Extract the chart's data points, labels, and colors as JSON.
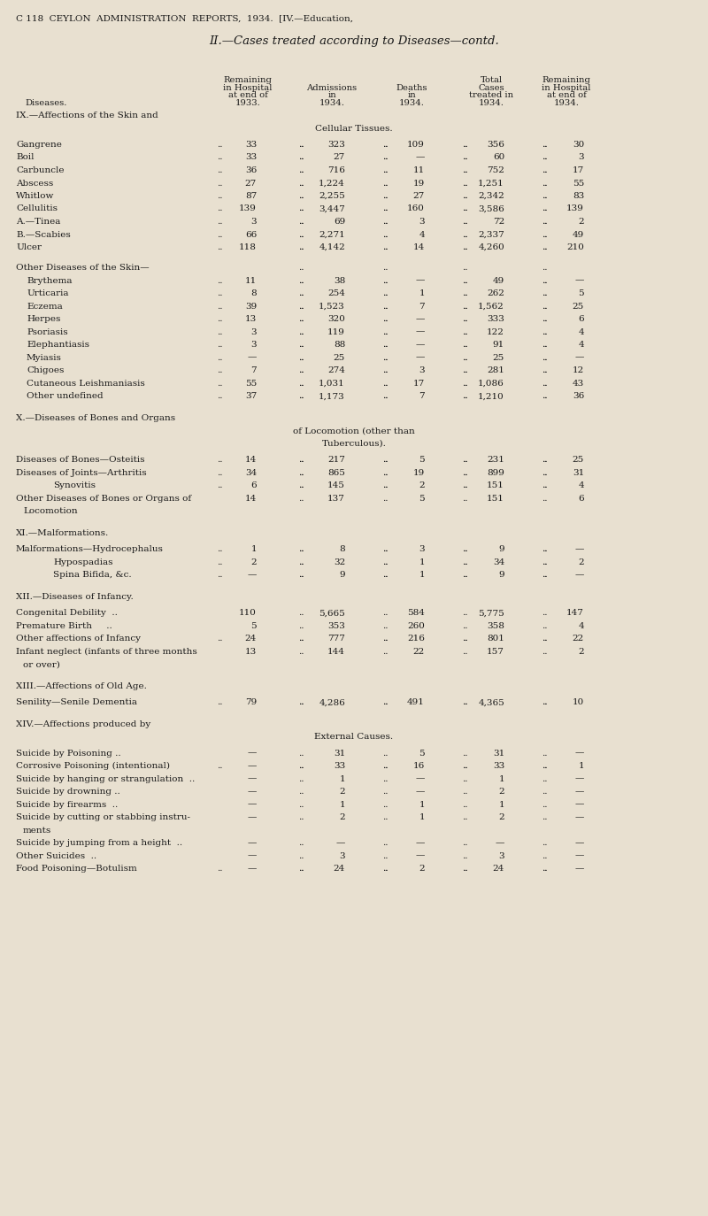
{
  "page_header": "C 118  CEYLON  ADMINISTRATION  REPORTS,  1934.  [IV.—Education,",
  "title": "II.—Cases treated according to Diseases—contd.",
  "bg_color": "#e8e0d0",
  "text_color": "#1a1a1a",
  "fig_width": 8.0,
  "fig_height": 13.74,
  "dpi": 100,
  "sections": [
    {
      "heading_lines": [
        "IX.—Affections of the Skin and",
        "Cellular Tissues."
      ],
      "heading_center": true,
      "rows": [
        {
          "label": "Gangrene",
          "dots": true,
          "indent": 0,
          "multiline": false,
          "v1": "33",
          "v2": "323",
          "v3": "109",
          "v4": "356",
          "v5": "30"
        },
        {
          "label": "Boil",
          "dots": true,
          "indent": 0,
          "multiline": false,
          "v1": "33",
          "v2": "27",
          "v3": "—",
          "v4": "60",
          "v5": "3"
        },
        {
          "label": "Carbuncle",
          "dots": true,
          "indent": 0,
          "multiline": false,
          "v1": "36",
          "v2": "716",
          "v3": "11",
          "v4": "752",
          "v5": "17"
        },
        {
          "label": "Abscess",
          "dots": true,
          "indent": 0,
          "multiline": false,
          "v1": "27",
          "v2": "1,224",
          "v3": "19",
          "v4": "1,251",
          "v5": "55"
        },
        {
          "label": "Whitlow",
          "dots": true,
          "indent": 0,
          "multiline": false,
          "v1": "87",
          "v2": "2,255",
          "v3": "27",
          "v4": "2,342",
          "v5": "83"
        },
        {
          "label": "Cellulitis",
          "dots": true,
          "indent": 0,
          "multiline": false,
          "v1": "139",
          "v2": "3,447",
          "v3": "160",
          "v4": "3,586",
          "v5": "139"
        },
        {
          "label": "A.—Tinea",
          "dots": true,
          "indent": 0,
          "multiline": false,
          "v1": "3",
          "v2": "69",
          "v3": "3",
          "v4": "72",
          "v5": "2"
        },
        {
          "label": "B.—Scabies",
          "dots": true,
          "indent": 0,
          "multiline": false,
          "v1": "66",
          "v2": "2,271",
          "v3": "4",
          "v4": "2,337",
          "v5": "49"
        },
        {
          "label": "Ulcer",
          "dots": true,
          "indent": 0,
          "multiline": false,
          "v1": "118",
          "v2": "4,142",
          "v3": "14",
          "v4": "4,260",
          "v5": "210"
        },
        {
          "label": "",
          "dots": false,
          "indent": 0,
          "multiline": false,
          "spacer": true,
          "v1": "",
          "v2": "",
          "v3": "",
          "v4": "",
          "v5": ""
        },
        {
          "label": "Other Diseases of the Skin—",
          "dots": false,
          "indent": 0,
          "multiline": false,
          "v1": "",
          "v2": "",
          "v3": "",
          "v4": "",
          "v5": ""
        },
        {
          "label": "Brythema",
          "dots": true,
          "indent": 1,
          "multiline": false,
          "v1": "11",
          "v2": "38",
          "v3": "—",
          "v4": "49",
          "v5": "—"
        },
        {
          "label": "Urticaria",
          "dots": true,
          "indent": 1,
          "multiline": false,
          "v1": "8",
          "v2": "254",
          "v3": "1",
          "v4": "262",
          "v5": "5"
        },
        {
          "label": "Eczema",
          "dots": true,
          "indent": 1,
          "multiline": false,
          "v1": "39",
          "v2": "1,523",
          "v3": "7",
          "v4": "1,562",
          "v5": "25"
        },
        {
          "label": "Herpes",
          "dots": true,
          "indent": 1,
          "multiline": false,
          "v1": "13",
          "v2": "320",
          "v3": "—",
          "v4": "333",
          "v5": "6"
        },
        {
          "label": "Psoriasis",
          "dots": true,
          "indent": 1,
          "multiline": false,
          "v1": "3",
          "v2": "119",
          "v3": "—",
          "v4": "122",
          "v5": "4"
        },
        {
          "label": "Elephantiasis",
          "dots": true,
          "indent": 1,
          "multiline": false,
          "v1": "3",
          "v2": "88",
          "v3": "—",
          "v4": "91",
          "v5": "4"
        },
        {
          "label": "Myiasis",
          "dots": true,
          "indent": 1,
          "multiline": false,
          "v1": "—",
          "v2": "25",
          "v3": "—",
          "v4": "25",
          "v5": "—"
        },
        {
          "label": "Chigoes",
          "dots": true,
          "indent": 1,
          "multiline": false,
          "v1": "7",
          "v2": "274",
          "v3": "3",
          "v4": "281",
          "v5": "12"
        },
        {
          "label": "Cutaneous Leishmaniasis",
          "dots": true,
          "indent": 1,
          "multiline": false,
          "v1": "55",
          "v2": "1,031",
          "v3": "17",
          "v4": "1,086",
          "v5": "43"
        },
        {
          "label": "Other undefined",
          "dots": true,
          "indent": 1,
          "multiline": false,
          "v1": "37",
          "v2": "1,173",
          "v3": "7",
          "v4": "1,210",
          "v5": "36"
        }
      ]
    },
    {
      "heading_lines": [
        "X.—Diseases of Bones and Organs",
        "of Locomotion (other than",
        "Tuberculous)."
      ],
      "heading_center": true,
      "rows": [
        {
          "label": "Diseases of Bones—Osteitis",
          "dots": true,
          "indent": 0,
          "multiline": false,
          "v1": "14",
          "v2": "217",
          "v3": "5",
          "v4": "231",
          "v5": "25"
        },
        {
          "label": "Diseases of Joints—Arthritis",
          "dots": true,
          "indent": 0,
          "multiline": false,
          "v1": "34",
          "v2": "865",
          "v3": "19",
          "v4": "899",
          "v5": "31"
        },
        {
          "label": "Synovitis",
          "dots": true,
          "indent": 2,
          "multiline": false,
          "v1": "6",
          "v2": "145",
          "v3": "2",
          "v4": "151",
          "v5": "4"
        },
        {
          "label": "Other Diseases of Bones or Organs of",
          "dots": false,
          "indent": 0,
          "multiline": true,
          "label2": "Locomotion",
          "v1": "14",
          "v2": "137",
          "v3": "5",
          "v4": "151",
          "v5": "6"
        }
      ]
    },
    {
      "heading_lines": [
        "XI.—Malformations."
      ],
      "heading_center": true,
      "rows": [
        {
          "label": "Malformations—Hydrocephalus",
          "dots": true,
          "indent": 0,
          "multiline": false,
          "v1": "1",
          "v2": "8",
          "v3": "3",
          "v4": "9",
          "v5": "—"
        },
        {
          "label": "Hypospadias",
          "dots": true,
          "indent": 2,
          "multiline": false,
          "v1": "2",
          "v2": "32",
          "v3": "1",
          "v4": "34",
          "v5": "2"
        },
        {
          "label": "Spina Bifida, &c.",
          "dots": true,
          "indent": 2,
          "multiline": false,
          "v1": "—",
          "v2": "9",
          "v3": "1",
          "v4": "9",
          "v5": "—"
        }
      ]
    },
    {
      "heading_lines": [
        "XII.—Diseases of Infancy."
      ],
      "heading_center": true,
      "rows": [
        {
          "label": "Congenital Debility  ..",
          "dots": false,
          "indent": 0,
          "multiline": false,
          "v1": "110",
          "v2": "5,665",
          "v3": "584",
          "v4": "5,775",
          "v5": "147"
        },
        {
          "label": "Premature Birth     ..",
          "dots": false,
          "indent": 0,
          "multiline": false,
          "v1": "5",
          "v2": "353",
          "v3": "260",
          "v4": "358",
          "v5": "4"
        },
        {
          "label": "Other affections of Infancy",
          "dots": true,
          "indent": 0,
          "multiline": false,
          "v1": "24",
          "v2": "777",
          "v3": "216",
          "v4": "801",
          "v5": "22"
        },
        {
          "label": "Infant neglect (infants of three months",
          "dots": false,
          "indent": 0,
          "multiline": true,
          "label2": "or over)",
          "v1": "13",
          "v2": "144",
          "v3": "22",
          "v4": "157",
          "v5": "2"
        }
      ]
    },
    {
      "heading_lines": [
        "XIII.—Affections of Old Age."
      ],
      "heading_center": true,
      "rows": [
        {
          "label": "Senility—Senile Dementia",
          "dots": true,
          "indent": 0,
          "multiline": false,
          "v1": "79",
          "v2": "4,286",
          "v3": "491",
          "v4": "4,365",
          "v5": "10"
        }
      ]
    },
    {
      "heading_lines": [
        "XIV.—Affections produced by",
        "External Causes."
      ],
      "heading_center": true,
      "rows": [
        {
          "label": "Suicide by Poisoning ..",
          "dots": false,
          "indent": 0,
          "multiline": false,
          "v1": "—",
          "v2": "31",
          "v3": "5",
          "v4": "31",
          "v5": "—"
        },
        {
          "label": "Corrosive Poisoning (intentional)",
          "dots": true,
          "indent": 0,
          "multiline": false,
          "v1": "—",
          "v2": "33",
          "v3": "16",
          "v4": "33",
          "v5": "1"
        },
        {
          "label": "Suicide by hanging or strangulation  ..",
          "dots": false,
          "indent": 0,
          "multiline": false,
          "v1": "—",
          "v2": "1",
          "v3": "—",
          "v4": "1",
          "v5": "—"
        },
        {
          "label": "Suicide by drowning ..",
          "dots": false,
          "indent": 0,
          "multiline": false,
          "v1": "—",
          "v2": "2",
          "v3": "—",
          "v4": "2",
          "v5": "—"
        },
        {
          "label": "Suicide by firearms  ..",
          "dots": false,
          "indent": 0,
          "multiline": false,
          "v1": "—",
          "v2": "1",
          "v3": "1",
          "v4": "1",
          "v5": "—"
        },
        {
          "label": "Suicide by cutting or stabbing instru-",
          "dots": false,
          "indent": 0,
          "multiline": true,
          "label2": "ments",
          "v1": "—",
          "v2": "2",
          "v3": "1",
          "v4": "2",
          "v5": "—"
        },
        {
          "label": "Suicide by jumping from a height  ..",
          "dots": false,
          "indent": 0,
          "multiline": false,
          "v1": "—",
          "v2": "—",
          "v3": "—",
          "v4": "—",
          "v5": "—"
        },
        {
          "label": "Other Suicides  ..",
          "dots": false,
          "indent": 0,
          "multiline": false,
          "v1": "—",
          "v2": "3",
          "v3": "—",
          "v4": "3",
          "v5": "—"
        },
        {
          "label": "Food Poisoning—Botulism",
          "dots": true,
          "indent": 0,
          "multiline": false,
          "v1": "—",
          "v2": "24",
          "v3": "2",
          "v4": "24",
          "v5": "—"
        }
      ]
    }
  ]
}
